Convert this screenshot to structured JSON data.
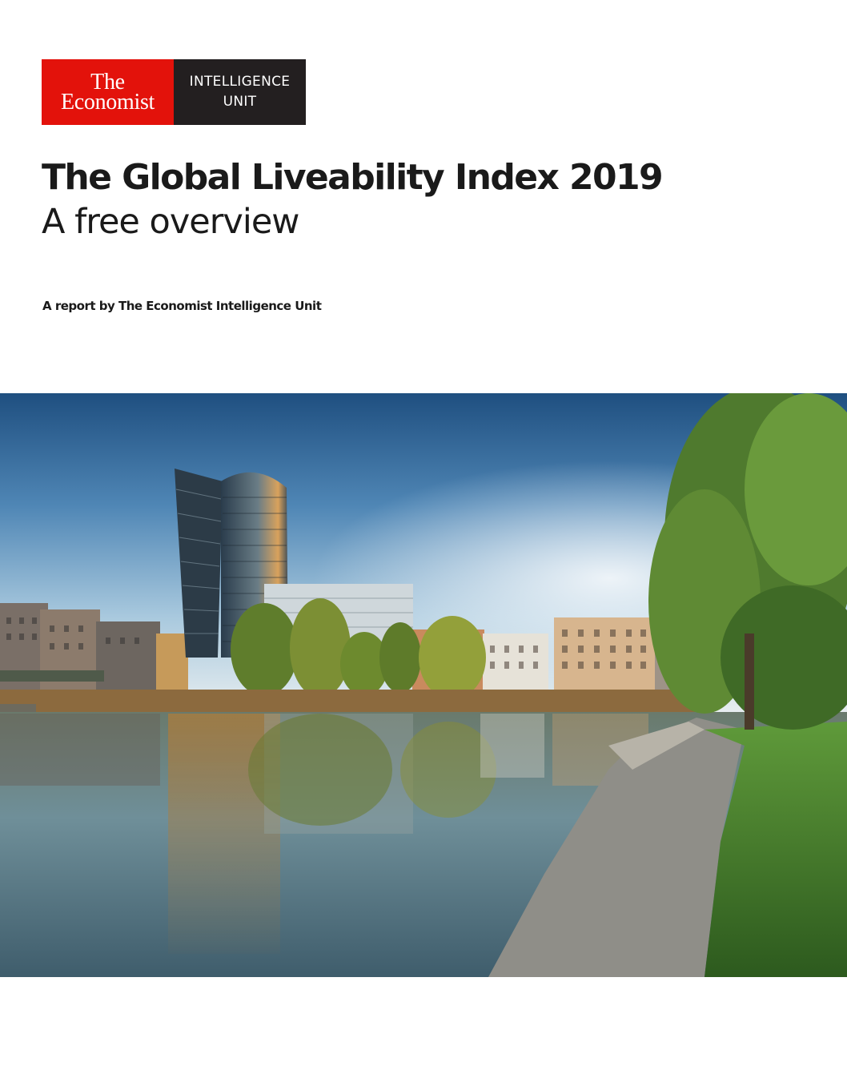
{
  "logo": {
    "brand_line1": "The",
    "brand_line2": "Economist",
    "unit_line1": "INTELLIGENCE",
    "unit_line2": "UNIT"
  },
  "cover": {
    "title": "The Global Liveability Index 2019",
    "subtitle": "A free overview",
    "byline": "A report by The Economist Intelligence Unit"
  },
  "colors": {
    "brand_red": "#e3120b",
    "brand_dark": "#231f20",
    "text": "#1a1a1a"
  }
}
